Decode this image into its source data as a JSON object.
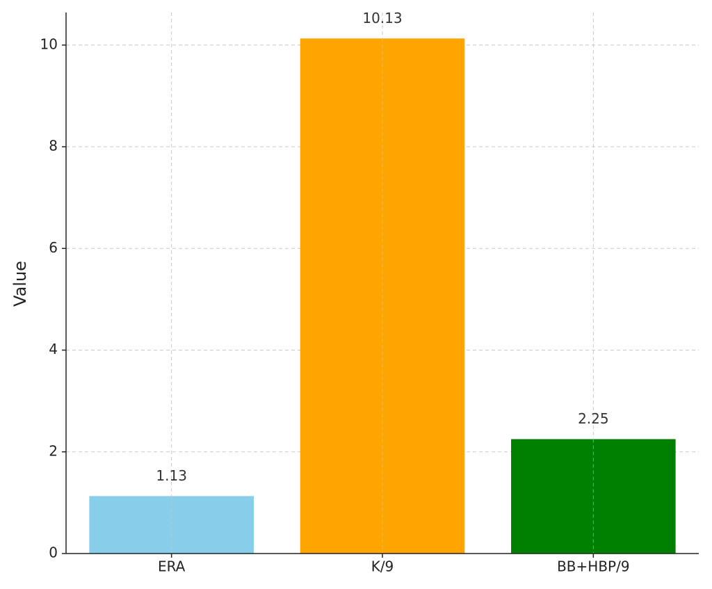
{
  "chart_data": {
    "type": "bar",
    "y_label": "Value",
    "categories": [
      "ERA",
      "K/9",
      "BB+HBP/9"
    ],
    "values": [
      1.13,
      10.13,
      2.25
    ],
    "colors": [
      "#87ceeb",
      "#ffa500",
      "#008000"
    ],
    "ylim": [
      0,
      10.64
    ],
    "yticks": [
      0,
      2,
      4,
      6,
      8,
      10
    ],
    "grid": true,
    "data_labels": true
  }
}
